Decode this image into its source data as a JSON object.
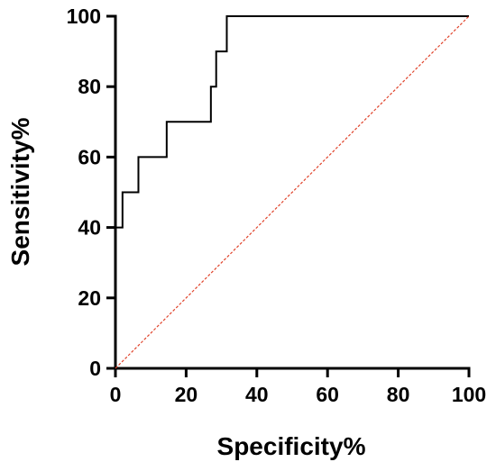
{
  "chart_data": {
    "type": "line",
    "title": "",
    "xlabel": "Specificity%",
    "ylabel": "Sensitivity%",
    "xlim": [
      0,
      100
    ],
    "ylim": [
      0,
      100
    ],
    "xticks": [
      0,
      20,
      40,
      60,
      80,
      100
    ],
    "yticks": [
      0,
      20,
      40,
      60,
      80,
      100
    ],
    "x_tick_labels": [
      "0",
      "20",
      "40",
      "60",
      "80",
      "100"
    ],
    "y_tick_labels": [
      "0",
      "20",
      "40",
      "60",
      "80",
      "100"
    ],
    "grid": false,
    "legend": "none",
    "series": [
      {
        "style": "step",
        "color": "#000000",
        "x": [
          0,
          0,
          2,
          2,
          6.5,
          6.5,
          14.5,
          14.5,
          27,
          27,
          28.5,
          28.5,
          30,
          30,
          31.5,
          31.5,
          100
        ],
        "y": [
          0,
          40,
          40,
          50,
          50,
          60,
          60,
          70,
          70,
          80,
          80,
          90,
          90,
          90,
          90,
          100,
          100
        ]
      },
      {
        "style": "reference-diagonal",
        "color": "#e0432b",
        "dashed": true,
        "x": [
          0,
          100
        ],
        "y": [
          0,
          100
        ]
      }
    ]
  }
}
